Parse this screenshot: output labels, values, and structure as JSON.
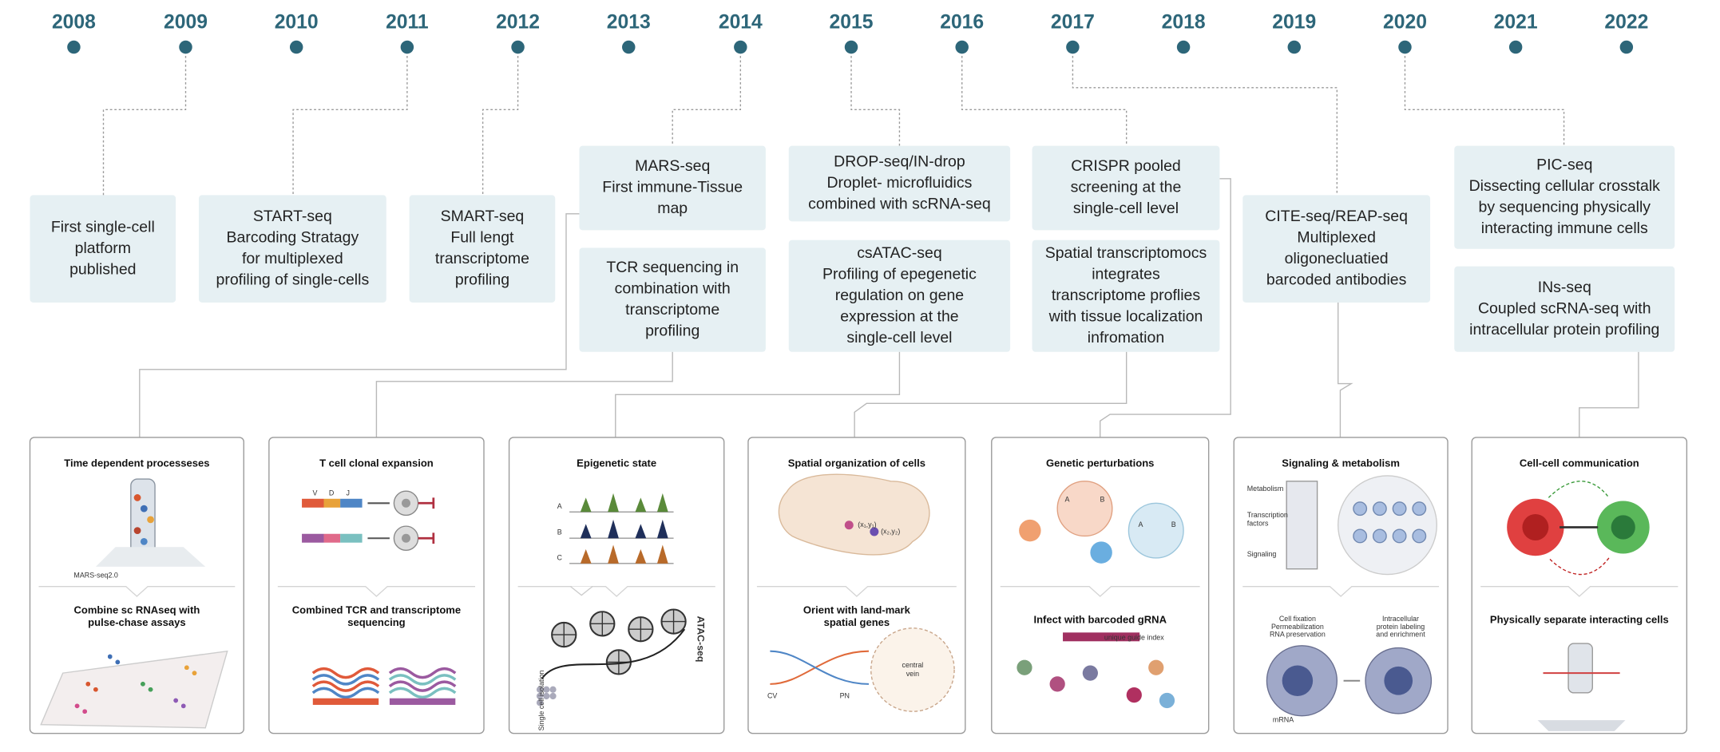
{
  "years": [
    "2008",
    "2009",
    "2010",
    "2011",
    "2012",
    "2013",
    "2014",
    "2015",
    "2016",
    "2017",
    "2018",
    "2019",
    "2020",
    "2021",
    "2022"
  ],
  "milestones": [
    {
      "lines": [
        "First single-cell",
        "platform",
        "published"
      ]
    },
    {
      "lines": [
        "START-seq",
        "Barcoding Stratagy",
        "for multiplexed",
        "profiling of single-cells"
      ]
    },
    {
      "lines": [
        "SMART-seq",
        "Full lengt",
        "transcriptome",
        "profiling"
      ]
    },
    {
      "lines": [
        "MARS-seq",
        "First immune-Tissue",
        "map"
      ]
    },
    {
      "lines": [
        "TCR sequencing in",
        "combination with",
        "transcriptome",
        "profiling"
      ]
    },
    {
      "lines": [
        "DROP-seq/IN-drop",
        "Droplet- microfluidics",
        "combined with scRNA-seq"
      ]
    },
    {
      "lines": [
        "csATAC-seq",
        "Profiling of epegenetic",
        "regulation on gene",
        "expression at the",
        "single-cell level"
      ]
    },
    {
      "lines": [
        "CRISPR pooled",
        "screening at the",
        "single-cell level"
      ]
    },
    {
      "lines": [
        "Spatial transcriptomocs",
        "integrates",
        "transcriptome proflies",
        "with tissue localization",
        "infromation"
      ]
    },
    {
      "lines": [
        "CITE-seq/REAP-seq",
        "Multiplexed",
        "oligonecluatied",
        "barcoded antibodies"
      ]
    },
    {
      "lines": [
        "PIC-seq",
        "Dissecting cellular crosstalk",
        "by sequencing physically",
        "interacting immune cells"
      ]
    },
    {
      "lines": [
        "INs-seq",
        "Coupled scRNA-seq with",
        "intracellular protein profiling"
      ]
    }
  ],
  "panels": [
    {
      "title": [
        "Time dependent processeses"
      ],
      "subtitle": [
        "Combine sc RNAseq with",
        "pulse-chase assays"
      ],
      "labels": [
        "MARS-seq2.0"
      ]
    },
    {
      "title": [
        "T cell clonal expansion"
      ],
      "subtitle": [
        "Combined TCR and transcriptome",
        "sequencing"
      ],
      "labels": [
        "V",
        "D",
        "J"
      ]
    },
    {
      "title": [
        "Epigenetic state"
      ],
      "subtitle": [],
      "labels": [
        "A",
        "B",
        "C",
        "ATAC-seq",
        "Single cell isolation"
      ]
    },
    {
      "title": [
        "Spatial organization of cells"
      ],
      "subtitle": [
        "Orient with land-mark",
        "spatial genes"
      ],
      "labels": [
        "(x₁,y₁)",
        "(x₂,y₂)",
        "CV",
        "PN",
        "central",
        "vein"
      ]
    },
    {
      "title": [
        "Genetic perturbations"
      ],
      "subtitle": [
        "Infect with barcoded gRNA"
      ],
      "labels": [
        "A",
        "B",
        "A",
        "B",
        "unique guide index"
      ]
    },
    {
      "title": [
        "Signaling & metabolism"
      ],
      "subtitle": [],
      "labels": [
        "Metabolism",
        "Transcription",
        "factors",
        "Signaling",
        "Cell fixation",
        "Permeabilization",
        "RNA preservation",
        "Intracellular",
        "protein labeling",
        "and enrichment",
        "mRNA"
      ]
    },
    {
      "title": [
        "Cell-cell communication"
      ],
      "subtitle": [
        "Physically separate interacting cells"
      ],
      "labels": []
    }
  ]
}
